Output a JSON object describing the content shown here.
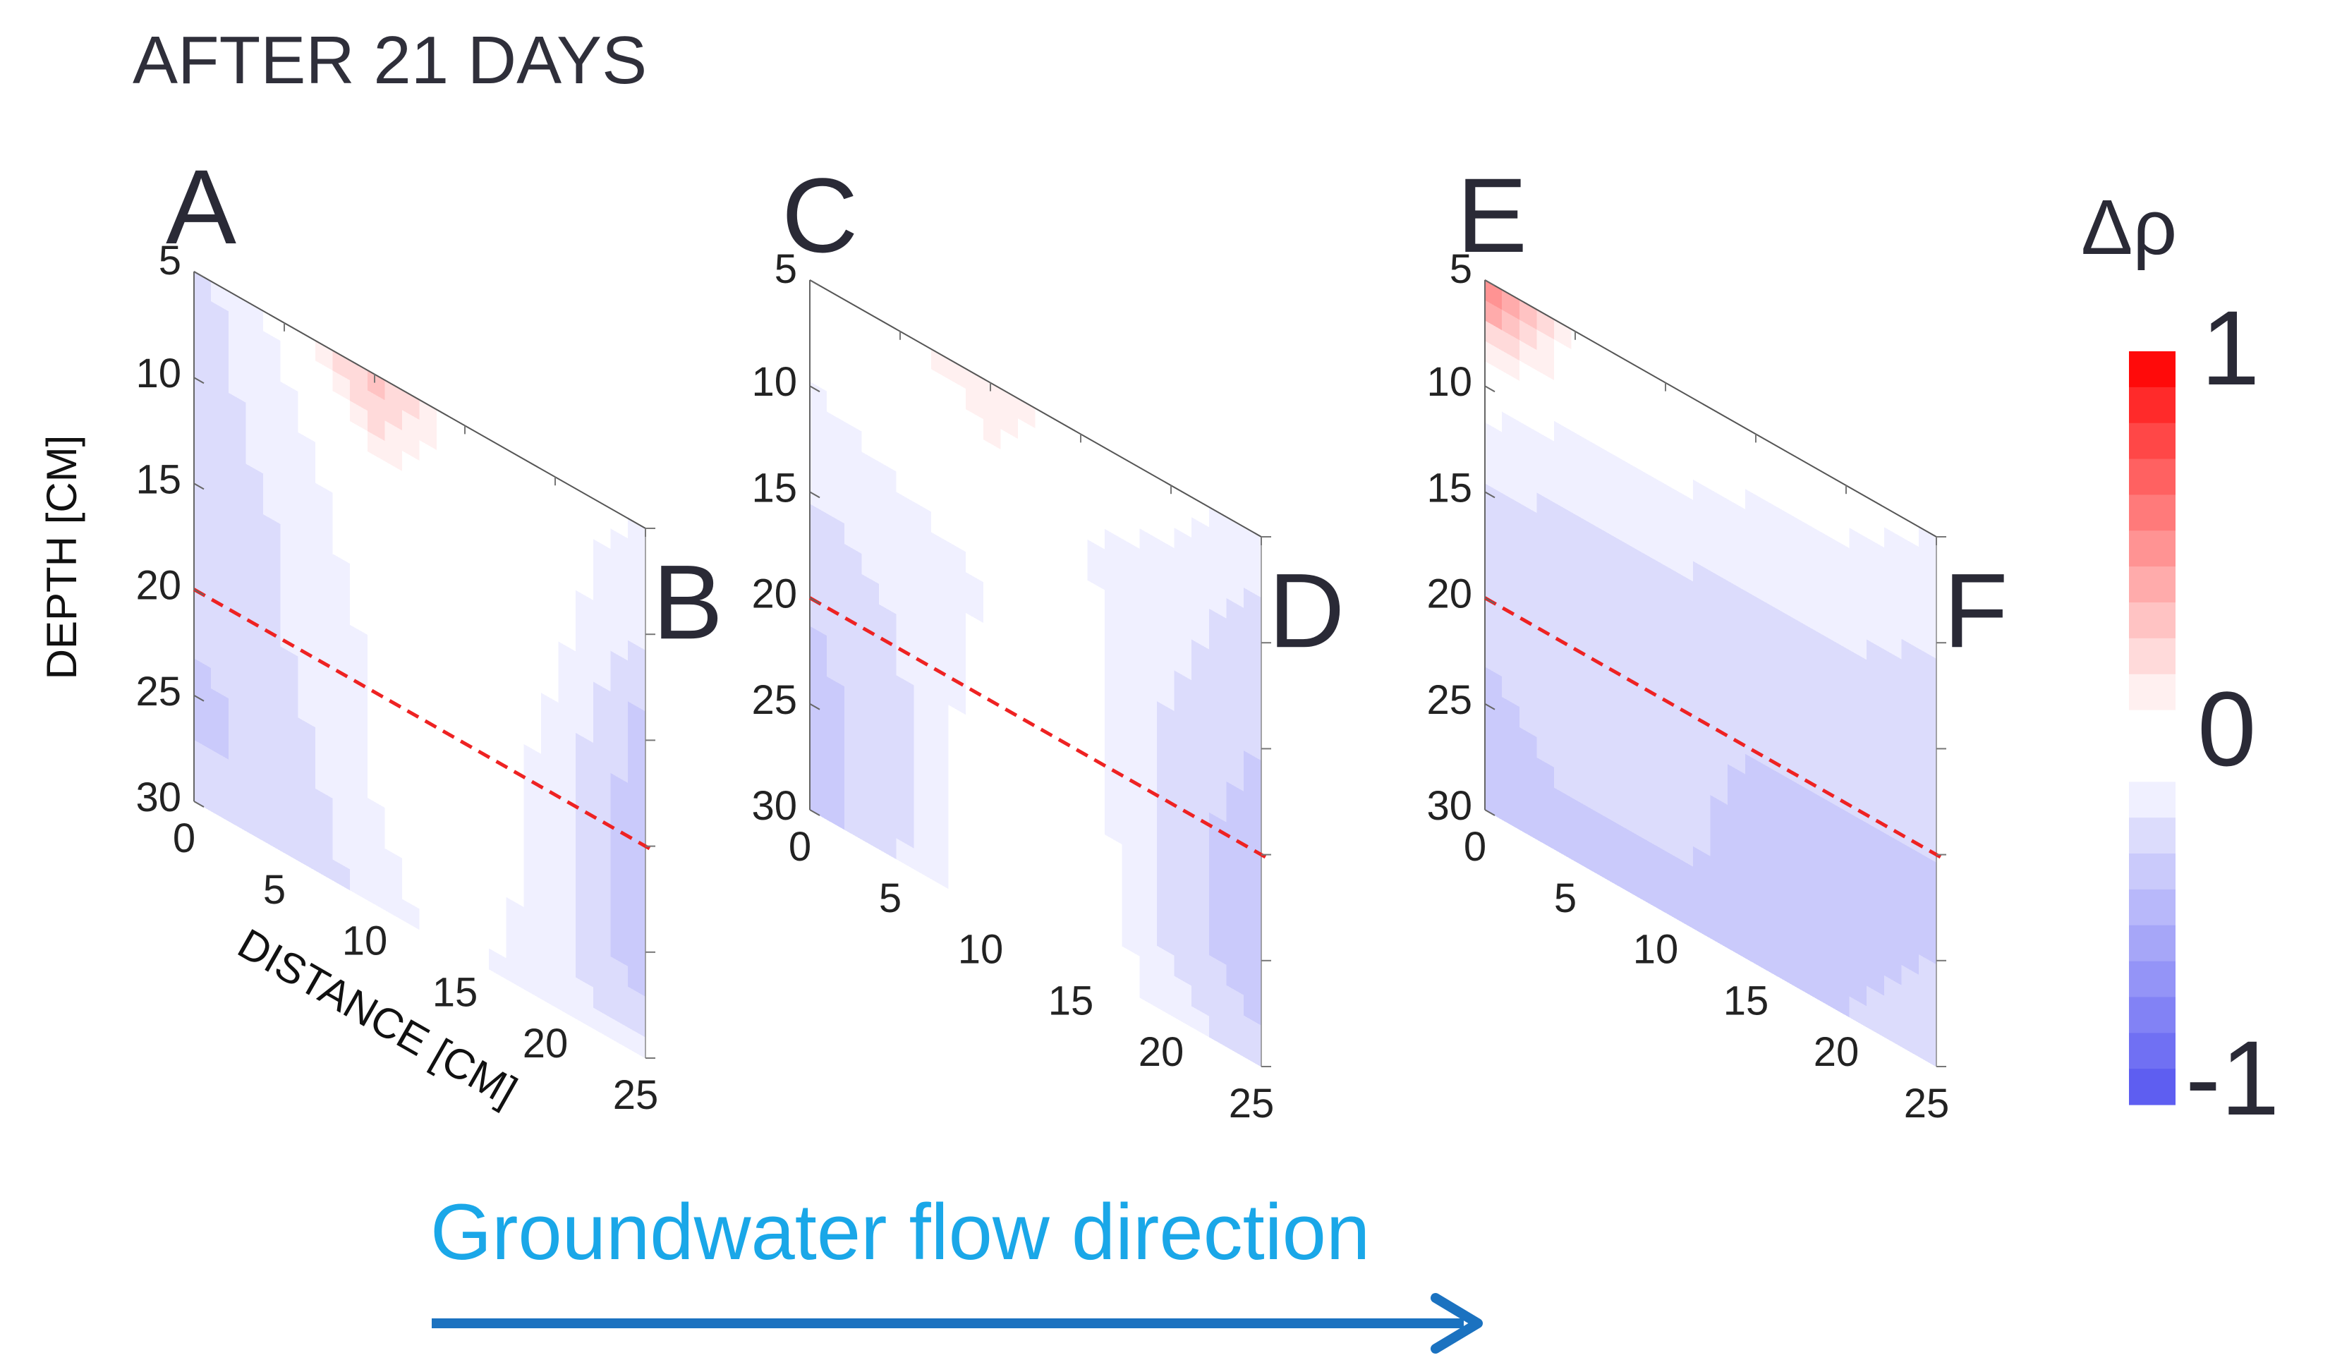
{
  "title": "AFTER 21 DAYS",
  "axes": {
    "depth_label": "DEPTH [CM]",
    "distance_label": "DISTANCE [CM]",
    "depth_ticks": [
      "5",
      "10",
      "15",
      "20",
      "25",
      "30"
    ],
    "distance_ticks": [
      "0",
      "5",
      "10",
      "15",
      "20",
      "25"
    ]
  },
  "flow": {
    "label": "Groundwater flow direction",
    "label_color": "#1aa7e8",
    "arrow_color": "#1b72c0"
  },
  "colorbar": {
    "title": "Δρ",
    "max_label": "1",
    "mid_label": "0",
    "min_label": "-1",
    "colors": [
      "#ff0a0a",
      "#ff2a2a",
      "#ff4747",
      "#ff6161",
      "#ff7a7a",
      "#ff9393",
      "#ffabab",
      "#ffc3c3",
      "#ffdada",
      "#fff0f0",
      "#ffffff",
      "#ffffff",
      "#f0f0ff",
      "#dcdcfc",
      "#cacafb",
      "#b8b8fa",
      "#a6a6f8",
      "#9494f7",
      "#8282f5",
      "#7070f3",
      "#5e5ef1"
    ]
  },
  "chart_data": {
    "type": "heatmap",
    "title": "AFTER 21 DAYS",
    "xlabel": "DISTANCE [CM]",
    "ylabel": "DEPTH [CM]",
    "colorbar_label": "Δρ",
    "xlim": [
      0,
      25
    ],
    "ylim": [
      5,
      30
    ],
    "zlim": [
      -1,
      1
    ],
    "x_ticks": [
      0,
      5,
      10,
      15,
      20,
      25
    ],
    "y_ticks": [
      5,
      10,
      15,
      20,
      25,
      30
    ],
    "panels": [
      {
        "front_label": "A",
        "back_label": "B",
        "dashed_line_depth": [
          20,
          20
        ],
        "grid_x": [
          0,
          5,
          10,
          15,
          20,
          25
        ],
        "grid_depth": [
          5,
          10,
          15,
          20,
          25,
          30
        ],
        "values": [
          [
            -0.3,
            -0.1,
            0.35,
            -0.05,
            -0.1,
            -0.15
          ],
          [
            -0.3,
            -0.2,
            -0.05,
            0.0,
            -0.1,
            -0.25
          ],
          [
            -0.3,
            -0.25,
            -0.1,
            -0.05,
            -0.15,
            -0.4
          ],
          [
            -0.3,
            -0.25,
            -0.15,
            -0.05,
            -0.2,
            -0.45
          ],
          [
            -0.4,
            -0.3,
            -0.15,
            -0.05,
            -0.2,
            -0.45
          ],
          [
            -0.3,
            -0.35,
            -0.2,
            -0.1,
            -0.25,
            -0.2
          ]
        ]
      },
      {
        "front_label": "C",
        "back_label": "D",
        "dashed_line_depth": [
          20,
          20
        ],
        "grid_x": [
          0,
          5,
          10,
          15,
          20,
          25
        ],
        "grid_depth": [
          5,
          10,
          15,
          20,
          25,
          30
        ],
        "values": [
          [
            -0.05,
            0.0,
            0.15,
            -0.05,
            -0.1,
            -0.2
          ],
          [
            -0.15,
            -0.1,
            -0.05,
            -0.15,
            -0.2,
            -0.3
          ],
          [
            -0.25,
            -0.2,
            -0.15,
            -0.1,
            -0.25,
            -0.35
          ],
          [
            -0.35,
            -0.25,
            -0.1,
            -0.1,
            -0.3,
            -0.4
          ],
          [
            -0.4,
            -0.3,
            -0.05,
            -0.05,
            -0.3,
            -0.45
          ],
          [
            -0.4,
            -0.25,
            -0.05,
            -0.05,
            -0.2,
            -0.3
          ]
        ]
      },
      {
        "front_label": "E",
        "back_label": "F",
        "dashed_line_depth": [
          20,
          20
        ],
        "grid_x": [
          0,
          5,
          10,
          15,
          20,
          25
        ],
        "grid_depth": [
          5,
          10,
          15,
          20,
          25,
          30
        ],
        "values": [
          [
            0.6,
            0.05,
            0.0,
            -0.05,
            -0.1,
            -0.15
          ],
          [
            -0.1,
            -0.15,
            -0.15,
            -0.2,
            -0.2,
            -0.25
          ],
          [
            -0.25,
            -0.3,
            -0.3,
            -0.3,
            -0.3,
            -0.3
          ],
          [
            -0.3,
            -0.25,
            -0.3,
            -0.35,
            -0.35,
            -0.35
          ],
          [
            -0.4,
            -0.3,
            -0.3,
            -0.4,
            -0.4,
            -0.35
          ],
          [
            -0.4,
            -0.4,
            -0.4,
            -0.4,
            -0.35,
            -0.3
          ]
        ]
      }
    ]
  }
}
